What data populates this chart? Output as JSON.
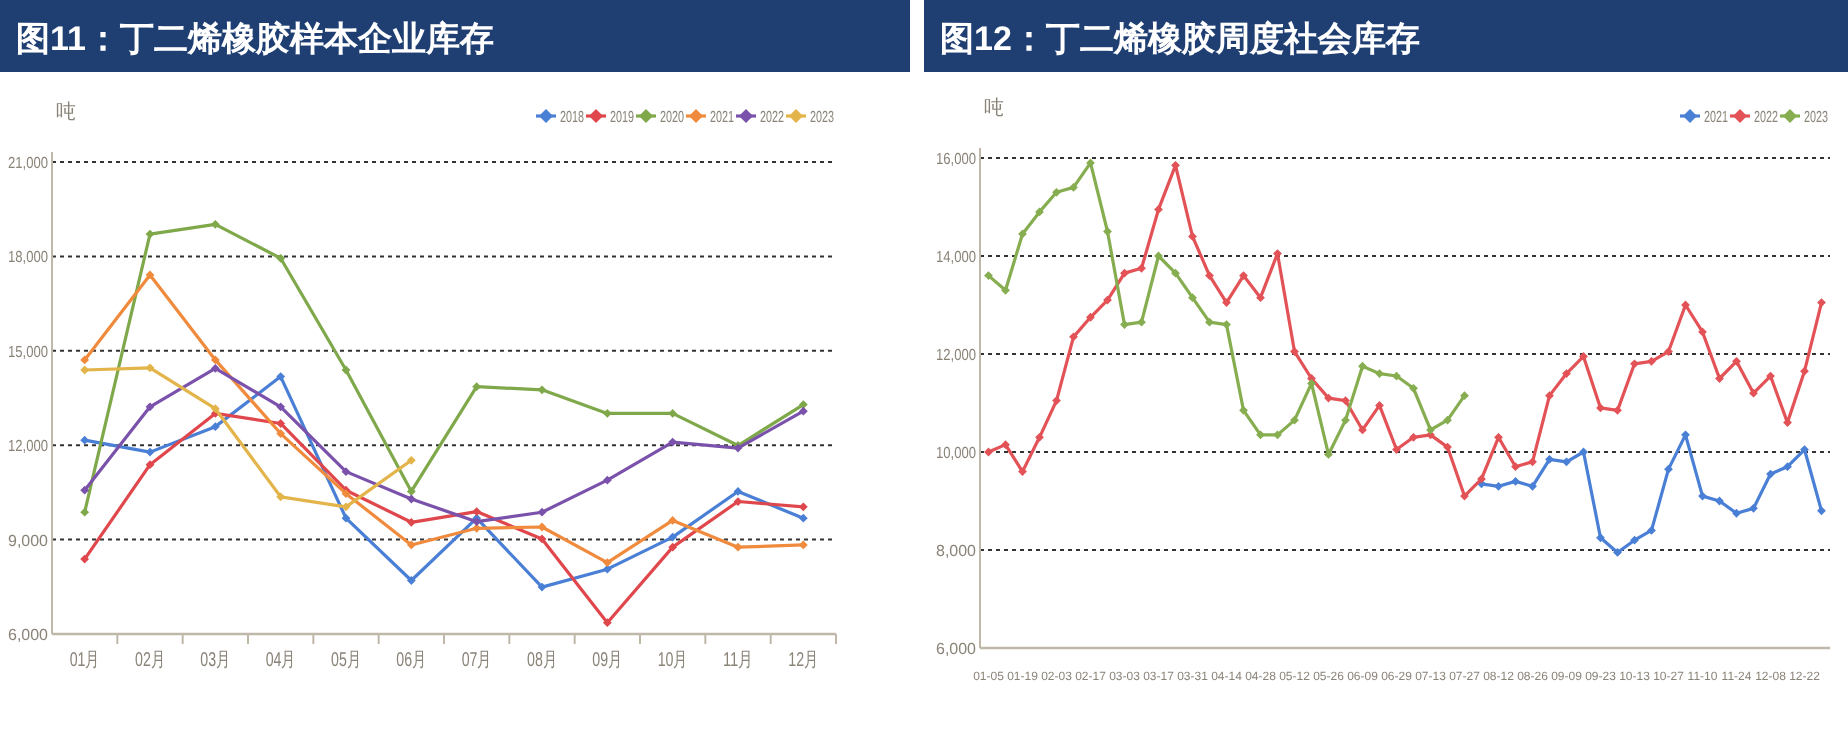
{
  "chart_data": [
    {
      "type": "line",
      "title": "图11：丁二烯橡胶样本企业库存",
      "ylabel": "吨",
      "categories": [
        "01月",
        "02月",
        "03月",
        "04月",
        "05月",
        "06月",
        "07月",
        "08月",
        "09月",
        "10月",
        "11月",
        "12月"
      ],
      "series": [
        {
          "name": "2018",
          "color": "#4a7fd6",
          "values": [
            12160,
            11780,
            12590,
            14180,
            9680,
            7700,
            9680,
            7490,
            8060,
            9080,
            10530,
            9680
          ]
        },
        {
          "name": "2019",
          "color": "#e0474c",
          "values": [
            8380,
            11380,
            13010,
            12690,
            10570,
            9550,
            9890,
            9020,
            6360,
            8760,
            10210,
            10040
          ]
        },
        {
          "name": "2020",
          "color": "#7fa84a",
          "values": [
            9870,
            18710,
            19020,
            17940,
            14390,
            10530,
            13860,
            13760,
            13010,
            13010,
            11990,
            13290
          ]
        },
        {
          "name": "2021",
          "color": "#f08a3c",
          "values": [
            14710,
            17410,
            14710,
            12370,
            10460,
            8830,
            9360,
            9400,
            8270,
            9610,
            8760,
            8830
          ]
        },
        {
          "name": "2022",
          "color": "#7b52ab",
          "values": [
            10570,
            13220,
            14440,
            13220,
            11160,
            10290,
            9570,
            9870,
            10890,
            12100,
            11910,
            13080
          ]
        },
        {
          "name": "2023",
          "color": "#e3b449",
          "values": [
            14390,
            14460,
            13160,
            10360,
            10040,
            11520,
            null,
            null,
            null,
            null,
            null,
            null
          ]
        }
      ],
      "ylim": [
        6000,
        21000
      ],
      "yticks": [
        {
          "value": 6000,
          "label": "6,000"
        },
        {
          "value": 9000,
          "label": "9,000"
        },
        {
          "value": 12000,
          "label": "12,000"
        },
        {
          "value": 15000,
          "label": "15,000"
        },
        {
          "value": 18000,
          "label": "18,000"
        },
        {
          "value": 21000,
          "label": "21,000"
        }
      ],
      "grid": "y",
      "legend": "top right",
      "marker": "diamond"
    },
    {
      "type": "line",
      "title": "图12：丁二烯橡胶周度社会库存",
      "ylabel": "吨",
      "categories": [
        "01-05",
        null,
        "01-19",
        null,
        "02-03",
        null,
        "02-17",
        null,
        "03-03",
        null,
        "03-17",
        null,
        "03-31",
        null,
        "04-14",
        null,
        "04-28",
        null,
        "05-12",
        null,
        "05-26",
        null,
        "06-09",
        null,
        "06-29",
        null,
        "07-13",
        null,
        "07-27",
        null,
        "08-12",
        null,
        "08-26",
        null,
        "09-09",
        null,
        "09-23",
        null,
        "10-13",
        null,
        "10-27",
        null,
        "11-10",
        null,
        "11-24",
        null,
        "12-08",
        null,
        "12-22",
        null
      ],
      "series": [
        {
          "name": "2021",
          "color": "#4a7fd6",
          "values": [
            null,
            null,
            null,
            null,
            null,
            null,
            null,
            null,
            null,
            null,
            null,
            null,
            null,
            null,
            null,
            null,
            null,
            null,
            null,
            null,
            null,
            null,
            null,
            null,
            null,
            null,
            null,
            null,
            null,
            9350,
            9300,
            9400,
            9300,
            9850,
            9800,
            10000,
            8250,
            7950,
            8200,
            8400,
            9650,
            10350,
            9100,
            9000,
            8750,
            8850,
            9550,
            9700,
            10050,
            8800
          ]
        },
        {
          "name": "2022",
          "color": "#e25256",
          "values": [
            10000,
            10150,
            9600,
            10300,
            11050,
            12350,
            12750,
            13100,
            13650,
            13750,
            14950,
            15850,
            14400,
            13600,
            13050,
            13600,
            13150,
            14050,
            12050,
            11500,
            11100,
            11050,
            10450,
            10950,
            10050,
            10300,
            10350,
            10100,
            9100,
            9450,
            10300,
            9700,
            9800,
            11150,
            11600,
            11950,
            10900,
            10850,
            11800,
            11850,
            12050,
            13000,
            12450,
            11500,
            11850,
            11200,
            11550,
            10600,
            11650,
            13050
          ]
        },
        {
          "name": "2023",
          "color": "#86ad4f",
          "values": [
            13600,
            13300,
            14450,
            14900,
            15300,
            15400,
            15900,
            14500,
            12600,
            12650,
            14000,
            13650,
            13150,
            12650,
            12600,
            10850,
            10350,
            10350,
            10650,
            11400,
            9950,
            10650,
            11750,
            11600,
            11550,
            11300,
            10450,
            10650,
            11150,
            null,
            null,
            null,
            null,
            null,
            null,
            null,
            null,
            null,
            null,
            null,
            null,
            null,
            null,
            null,
            null,
            null,
            null,
            null,
            null,
            null
          ]
        }
      ],
      "ylim": [
        6000,
        16000
      ],
      "yticks": [
        {
          "value": 6000,
          "label": "6,000"
        },
        {
          "value": 8000,
          "label": "8,000"
        },
        {
          "value": 10000,
          "label": "10,000"
        },
        {
          "value": 12000,
          "label": "12,000"
        },
        {
          "value": 14000,
          "label": "14,000"
        },
        {
          "value": 16000,
          "label": "16,000"
        }
      ],
      "grid": "y",
      "legend": "top right",
      "marker": "diamond"
    }
  ]
}
